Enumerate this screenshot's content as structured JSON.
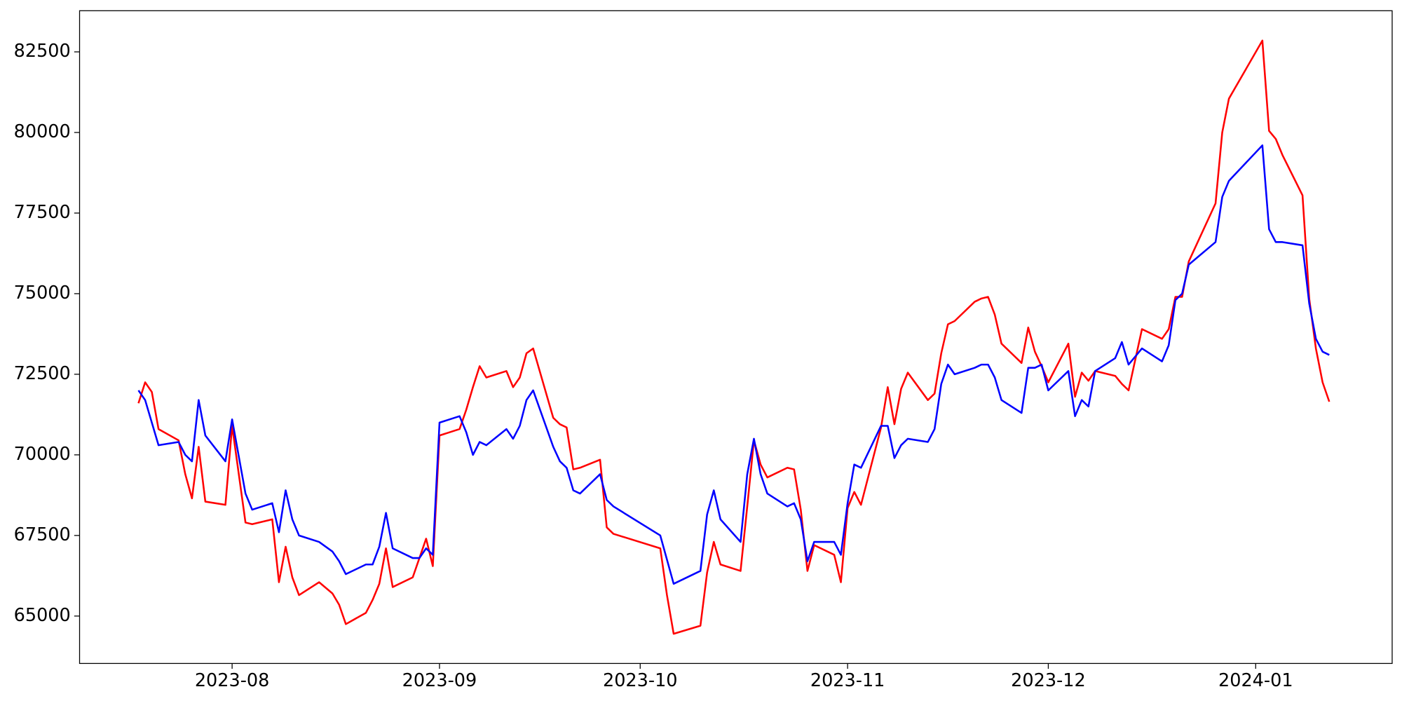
{
  "chart_data": {
    "type": "line",
    "x": [
      17,
      18,
      19,
      20,
      23,
      24,
      25,
      26,
      27,
      30,
      31,
      33,
      34,
      37,
      38,
      39,
      40,
      41,
      44,
      46,
      47,
      48,
      51,
      52,
      53,
      54,
      55,
      58,
      59,
      60,
      61,
      62,
      65,
      66,
      67,
      68,
      69,
      72,
      73,
      74,
      75,
      76,
      79,
      80,
      81,
      82,
      83,
      86,
      87,
      88,
      95,
      96,
      97,
      101,
      102,
      103,
      104,
      107,
      108,
      109,
      110,
      111,
      114,
      115,
      116,
      117,
      118,
      121,
      122,
      123,
      124,
      125,
      128,
      129,
      130,
      131,
      132,
      135,
      136,
      137,
      138,
      139,
      142,
      143,
      144,
      145,
      146,
      149,
      150,
      151,
      152,
      153,
      156,
      157,
      158,
      159,
      160,
      163,
      164,
      165,
      167,
      170,
      171,
      172,
      173,
      174,
      178,
      179,
      180,
      185,
      186,
      187,
      188,
      191,
      192,
      193,
      194,
      195
    ],
    "series": [
      {
        "color": "#ff0000",
        "values": [
          71600,
          72250,
          71950,
          70800,
          70450,
          69400,
          68650,
          70250,
          68550,
          68450,
          70900,
          67900,
          67850,
          68000,
          66050,
          67150,
          66200,
          65650,
          66050,
          65700,
          65350,
          64750,
          65100,
          65500,
          66000,
          67100,
          65900,
          66200,
          66800,
          67400,
          66550,
          70600,
          70800,
          71400,
          72100,
          72750,
          72400,
          72600,
          72100,
          72400,
          73150,
          73300,
          71150,
          70950,
          70850,
          69550,
          69600,
          69850,
          67750,
          67550,
          67100,
          65650,
          64450,
          64700,
          66350,
          67300,
          66600,
          66400,
          68400,
          70450,
          69700,
          69300,
          69600,
          69550,
          68300,
          66400,
          67200,
          66900,
          66050,
          68350,
          68850,
          68450,
          70850,
          72100,
          70950,
          72050,
          72550,
          71700,
          71900,
          73150,
          74050,
          74150,
          74750,
          74850,
          74900,
          74350,
          73450,
          72850,
          73950,
          73200,
          72750,
          72250,
          73450,
          71800,
          72550,
          72300,
          72600,
          72450,
          72200,
          72000,
          73900,
          73600,
          73900,
          74900,
          74900,
          76000,
          77800,
          80000,
          81050,
          82850,
          80050,
          79800,
          79300,
          78050,
          74850,
          73300,
          72250,
          71650
        ]
      },
      {
        "color": "#0000ff",
        "values": [
          72000,
          71700,
          71000,
          70300,
          70400,
          70000,
          69800,
          71700,
          70600,
          69800,
          71100,
          68800,
          68300,
          68500,
          67600,
          68900,
          68000,
          67500,
          67300,
          67000,
          66700,
          66300,
          66600,
          66600,
          67150,
          68200,
          67100,
          66800,
          66800,
          67100,
          66900,
          71000,
          71200,
          70700,
          70000,
          70400,
          70300,
          70800,
          70500,
          70900,
          71700,
          72000,
          70250,
          69800,
          69600,
          68900,
          68800,
          69400,
          68600,
          68400,
          67500,
          66750,
          66000,
          66400,
          68150,
          68900,
          68000,
          67300,
          69400,
          70500,
          69400,
          68800,
          68400,
          68500,
          68000,
          66700,
          67300,
          67300,
          66900,
          68500,
          69700,
          69600,
          70900,
          70900,
          69900,
          70300,
          70500,
          70400,
          70800,
          72200,
          72800,
          72500,
          72700,
          72800,
          72800,
          72400,
          71700,
          71300,
          72700,
          72700,
          72800,
          72000,
          72600,
          71200,
          71700,
          71500,
          72600,
          73000,
          73500,
          72800,
          73300,
          72900,
          73400,
          74800,
          75000,
          75900,
          76600,
          78000,
          78500,
          79600,
          77000,
          76600,
          76600,
          76500,
          74700,
          73600,
          73200,
          73100
        ]
      }
    ],
    "xlim": [
      8.2,
      204.4
    ],
    "ylim": [
      63530,
      83776
    ],
    "xticks": [
      {
        "value": 31,
        "label": "2023-08"
      },
      {
        "value": 62,
        "label": "2023-09"
      },
      {
        "value": 92,
        "label": "2023-10"
      },
      {
        "value": 123,
        "label": "2023-11"
      },
      {
        "value": 153,
        "label": "2023-12"
      },
      {
        "value": 184,
        "label": "2024-01"
      }
    ],
    "yticks": [
      65000,
      67500,
      70000,
      72500,
      75000,
      77500,
      80000,
      82500
    ],
    "grid": false
  }
}
